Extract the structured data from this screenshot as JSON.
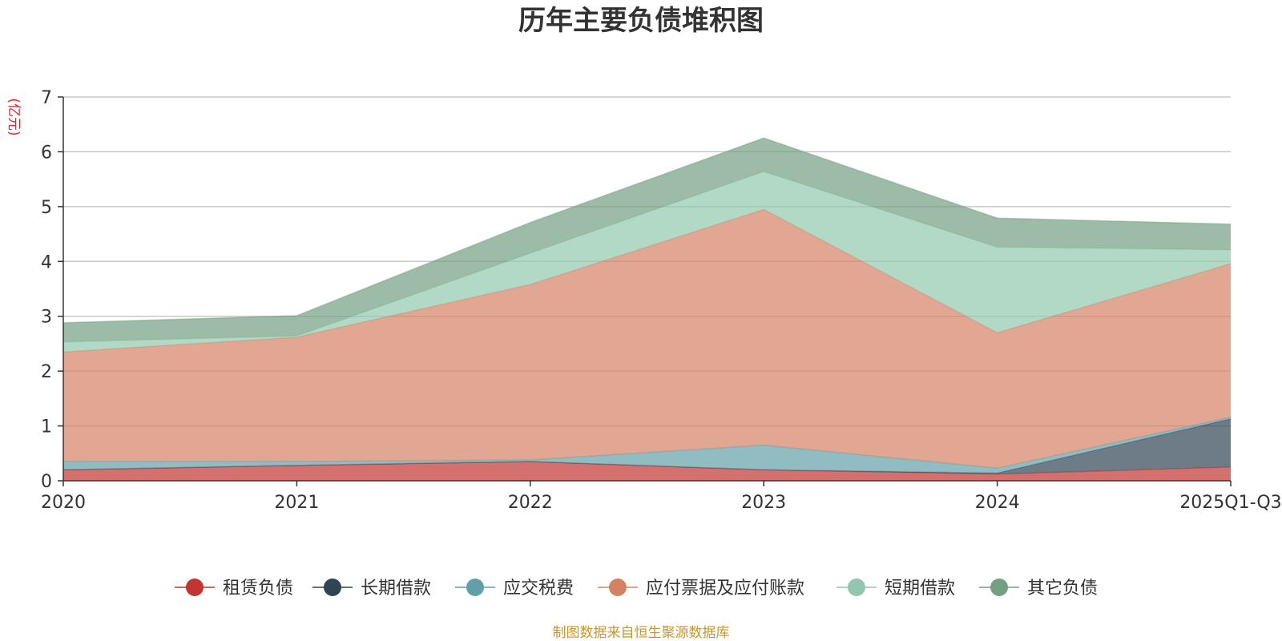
{
  "chart_data": {
    "type": "area",
    "stacked": true,
    "title": "历年主要负债堆积图",
    "unit_label": "(亿元)",
    "categories": [
      "2020",
      "2021",
      "2022",
      "2023",
      "2024",
      "2025Q1-Q3"
    ],
    "ylim": [
      0,
      7
    ],
    "yticks": [
      "0",
      "1",
      "2",
      "3",
      "4",
      "5",
      "6",
      "7"
    ],
    "grid": true,
    "legend_position": "bottom",
    "series": [
      {
        "name": "租赁负债",
        "color": "#c23531",
        "values": [
          0.2,
          0.28,
          0.35,
          0.2,
          0.12,
          0.25
        ]
      },
      {
        "name": "长期借款",
        "color": "#2f4554",
        "values": [
          0,
          0,
          0,
          0,
          0.02,
          0.88
        ]
      },
      {
        "name": "应交税费",
        "color": "#61a0a8",
        "values": [
          0.15,
          0.07,
          0.03,
          0.45,
          0.09,
          0.03
        ]
      },
      {
        "name": "应付票据及应付账款",
        "color": "#d48265",
        "values": [
          2.0,
          2.27,
          3.2,
          4.3,
          2.47,
          2.8
        ]
      },
      {
        "name": "短期借款",
        "color": "#91c7ae",
        "values": [
          0.18,
          0.02,
          0.57,
          0.69,
          1.56,
          0.25
        ]
      },
      {
        "name": "其它负债",
        "color": "#749f83",
        "values": [
          0.35,
          0.37,
          0.56,
          0.61,
          0.53,
          0.47
        ]
      }
    ],
    "source": "制图数据来自恒生聚源数据库"
  }
}
